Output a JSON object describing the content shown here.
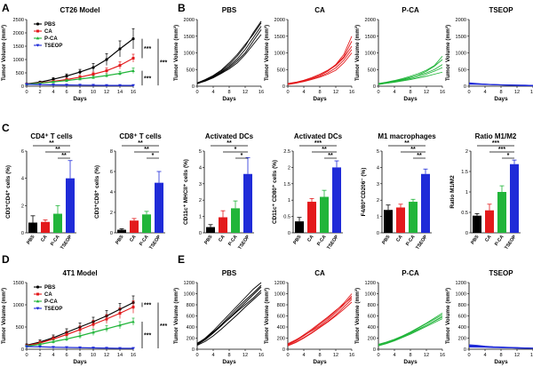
{
  "colors": {
    "PBS": "#000000",
    "CA": "#e31a1c",
    "P-CA": "#21b53a",
    "TSEOP": "#1f2bd8"
  },
  "panel_labels": {
    "A": "A",
    "B": "B",
    "C": "C",
    "D": "D",
    "E": "E"
  },
  "chart_data": [
    {
      "id": "A",
      "type": "line",
      "title": "CT26 Model",
      "xlabel": "Days",
      "ylabel": "Tumor Volume (mm³)",
      "xlim": [
        0,
        16
      ],
      "ylim": [
        0,
        2500
      ],
      "xticks": [
        0,
        2,
        4,
        6,
        8,
        10,
        12,
        14,
        16
      ],
      "yticks": [
        0,
        500,
        1000,
        1500,
        2000,
        2500
      ],
      "x": [
        0,
        2,
        4,
        6,
        8,
        10,
        12,
        14,
        16
      ],
      "series": [
        {
          "name": "PBS",
          "values": [
            90,
            150,
            260,
            380,
            530,
            700,
            1000,
            1400,
            1780
          ],
          "err": [
            20,
            40,
            60,
            80,
            100,
            150,
            220,
            300,
            380
          ]
        },
        {
          "name": "CA",
          "values": [
            80,
            120,
            180,
            250,
            340,
            450,
            580,
            780,
            1050
          ],
          "err": [
            15,
            30,
            40,
            50,
            60,
            80,
            100,
            130,
            150
          ]
        },
        {
          "name": "P-CA",
          "values": [
            80,
            110,
            160,
            210,
            270,
            330,
            400,
            480,
            580
          ],
          "err": [
            15,
            25,
            30,
            40,
            50,
            60,
            70,
            80,
            100
          ]
        },
        {
          "name": "TSEOP",
          "values": [
            70,
            60,
            50,
            45,
            40,
            35,
            30,
            30,
            30
          ],
          "err": [
            10,
            10,
            10,
            8,
            8,
            8,
            8,
            8,
            8
          ]
        }
      ],
      "sig": [
        "***",
        "***",
        "***"
      ]
    },
    {
      "id": "B",
      "type": "line",
      "xlabel": "Days",
      "ylabel": "Tumor Volume (mm³)",
      "xlim": [
        0,
        16
      ],
      "ylim": [
        0,
        2000
      ],
      "xticks": [
        0,
        4,
        8,
        12,
        16
      ],
      "yticks": [
        0,
        500,
        1000,
        1500,
        2000
      ],
      "panels": [
        {
          "title": "PBS",
          "group": "PBS",
          "x": [
            0,
            2,
            4,
            6,
            8,
            10,
            12,
            14,
            16
          ],
          "lines": [
            [
              80,
              180,
              300,
              450,
              650,
              900,
              1200,
              1600,
              1950
            ],
            [
              90,
              170,
              280,
              420,
              600,
              820,
              1100,
              1450,
              1800
            ],
            [
              70,
              160,
              260,
              400,
              560,
              760,
              1000,
              1350,
              1700
            ],
            [
              100,
              200,
              320,
              480,
              700,
              950,
              1250,
              1550,
              1900
            ],
            [
              80,
              150,
              250,
              380,
              520,
              700,
              950,
              1250,
              1550
            ]
          ]
        },
        {
          "title": "CA",
          "group": "CA",
          "x": [
            0,
            2,
            4,
            6,
            8,
            10,
            12,
            14,
            16
          ],
          "lines": [
            [
              60,
              100,
              160,
              230,
              320,
              450,
              650,
              950,
              1500
            ],
            [
              70,
              110,
              170,
              240,
              330,
              460,
              620,
              850,
              1200
            ],
            [
              50,
              90,
              150,
              210,
              290,
              400,
              550,
              780,
              1100
            ],
            [
              80,
              120,
              180,
              260,
              360,
              480,
              640,
              880,
              1350
            ],
            [
              60,
              95,
              140,
              200,
              270,
              360,
              480,
              700,
              1000
            ]
          ]
        },
        {
          "title": "P-CA",
          "group": "P-CA",
          "x": [
            0,
            2,
            4,
            6,
            8,
            10,
            12,
            14,
            16
          ],
          "lines": [
            [
              60,
              100,
              150,
              200,
              260,
              340,
              450,
              600,
              800
            ],
            [
              70,
              110,
              160,
              210,
              270,
              330,
              400,
              500,
              650
            ],
            [
              50,
              90,
              130,
              180,
              230,
              290,
              360,
              450,
              560
            ],
            [
              80,
              120,
              170,
              230,
              300,
              380,
              480,
              620,
              900
            ],
            [
              60,
              90,
              120,
              160,
              200,
              250,
              300,
              360,
              420
            ]
          ]
        },
        {
          "title": "TSEOP",
          "group": "TSEOP",
          "x": [
            0,
            2,
            4,
            6,
            8,
            10,
            12,
            14,
            16
          ],
          "lines": [
            [
              90,
              70,
              60,
              50,
              40,
              30,
              20,
              15,
              10
            ],
            [
              80,
              75,
              60,
              50,
              45,
              40,
              35,
              30,
              25
            ],
            [
              70,
              65,
              55,
              45,
              40,
              35,
              30,
              25,
              20
            ],
            [
              100,
              80,
              60,
              45,
              35,
              30,
              25,
              20,
              15
            ],
            [
              60,
              55,
              50,
              45,
              40,
              35,
              30,
              30,
              25
            ]
          ]
        }
      ]
    },
    {
      "id": "C",
      "type": "bar",
      "categories": [
        "PBS",
        "CA",
        "P-CA",
        "TSEOP"
      ],
      "panels": [
        {
          "title": "CD4⁺ T cells",
          "ylabel": "CD3⁺CD4⁺ cells (%)",
          "ylim": [
            0,
            6
          ],
          "yticks": [
            0,
            2,
            4,
            6
          ],
          "values": [
            0.75,
            0.8,
            1.4,
            4.0
          ],
          "err": [
            0.5,
            0.15,
            0.6,
            1.3
          ],
          "sig": [
            "**",
            "**",
            "**"
          ]
        },
        {
          "title": "CD8⁺ T cells",
          "ylabel": "CD3⁺CD8⁺ cells (%)",
          "ylim": [
            0,
            8
          ],
          "yticks": [
            0,
            2,
            4,
            6,
            8
          ],
          "values": [
            0.3,
            1.2,
            1.8,
            4.9
          ],
          "err": [
            0.1,
            0.2,
            0.3,
            1.1
          ],
          "sig": [
            "**",
            "**",
            "*"
          ]
        },
        {
          "title": "Activated DCs",
          "ylabel": "CD11c⁺ MHCII⁺ cells (%)",
          "ylim": [
            0,
            5
          ],
          "yticks": [
            0,
            1,
            2,
            3,
            4,
            5
          ],
          "values": [
            0.35,
            0.95,
            1.5,
            3.6
          ],
          "err": [
            0.15,
            0.4,
            0.45,
            1.0
          ],
          "sig": [
            "**",
            "*",
            "*"
          ]
        },
        {
          "title": "Activated DCs",
          "ylabel": "CD11c⁺ CD80⁺ cells (%)",
          "ylim": [
            0,
            2.5
          ],
          "yticks": [
            0,
            0.5,
            1.0,
            1.5,
            2.0,
            2.5
          ],
          "values": [
            0.35,
            0.95,
            1.1,
            2.0
          ],
          "err": [
            0.12,
            0.1,
            0.2,
            0.2
          ],
          "sig": [
            "***",
            "**",
            "**"
          ]
        },
        {
          "title": "M1 macrophages",
          "ylabel": "F4/80⁺CD206⁻ (%)",
          "ylim": [
            0,
            5
          ],
          "yticks": [
            0,
            1,
            2,
            3,
            4,
            5
          ],
          "values": [
            1.4,
            1.55,
            1.9,
            3.6
          ],
          "err": [
            0.3,
            0.2,
            0.15,
            0.3
          ],
          "sig": [
            "**",
            "**",
            "**"
          ]
        },
        {
          "title": "Ratio M1/M2",
          "ylabel": "Ratio M1/M2",
          "ylim": [
            0,
            2.0
          ],
          "yticks": [
            0,
            0.5,
            1.0,
            1.5,
            2.0
          ],
          "values": [
            0.42,
            0.55,
            1.0,
            1.68
          ],
          "err": [
            0.05,
            0.15,
            0.15,
            0.1
          ],
          "sig": [
            "***",
            "***",
            "*"
          ]
        }
      ]
    },
    {
      "id": "D",
      "type": "line",
      "title": "4T1 Model",
      "xlabel": "Days",
      "ylabel": "Tumor Volume (mm³)",
      "xlim": [
        0,
        16
      ],
      "ylim": [
        0,
        1500
      ],
      "xticks": [
        0,
        2,
        4,
        6,
        8,
        10,
        12,
        14,
        16
      ],
      "yticks": [
        0,
        500,
        1000,
        1500
      ],
      "x": [
        0,
        2,
        4,
        6,
        8,
        10,
        12,
        14,
        16
      ],
      "series": [
        {
          "name": "PBS",
          "values": [
            90,
            160,
            260,
            380,
            500,
            620,
            750,
            900,
            1050
          ],
          "err": [
            30,
            50,
            60,
            80,
            90,
            100,
            120,
            130,
            150
          ]
        },
        {
          "name": "CA",
          "values": [
            80,
            140,
            230,
            330,
            440,
            560,
            680,
            810,
            950
          ],
          "err": [
            20,
            40,
            50,
            70,
            80,
            90,
            100,
            120,
            140
          ]
        },
        {
          "name": "P-CA",
          "values": [
            70,
            110,
            170,
            230,
            300,
            380,
            460,
            540,
            620
          ],
          "err": [
            20,
            30,
            40,
            50,
            60,
            70,
            70,
            80,
            80
          ]
        },
        {
          "name": "TSEOP",
          "values": [
            60,
            55,
            45,
            40,
            35,
            30,
            25,
            20,
            20
          ],
          "err": [
            10,
            10,
            8,
            8,
            8,
            8,
            6,
            6,
            6
          ]
        }
      ],
      "sig": [
        "***",
        "***",
        "***"
      ]
    },
    {
      "id": "E",
      "type": "line",
      "xlabel": "Days",
      "ylabel": "Tumor Volume (mm³)",
      "xlim": [
        0,
        16
      ],
      "ylim": [
        0,
        1200
      ],
      "xticks": [
        0,
        4,
        8,
        12,
        16
      ],
      "yticks": [
        0,
        200,
        400,
        600,
        800,
        1000,
        1200
      ],
      "panels": [
        {
          "title": "PBS",
          "group": "PBS",
          "x": [
            0,
            2,
            4,
            6,
            8,
            10,
            12,
            14,
            16
          ],
          "lines": [
            [
              100,
              200,
              330,
              480,
              630,
              780,
              930,
              1080,
              1200
            ],
            [
              80,
              170,
              290,
              420,
              560,
              700,
              840,
              980,
              1120
            ],
            [
              90,
              180,
              300,
              440,
              590,
              740,
              880,
              1010,
              1150
            ],
            [
              70,
              140,
              240,
              360,
              490,
              620,
              760,
              890,
              1020
            ],
            [
              110,
              190,
              310,
              430,
              550,
              680,
              800,
              920,
              1060
            ]
          ]
        },
        {
          "title": "CA",
          "group": "CA",
          "x": [
            0,
            2,
            4,
            6,
            8,
            10,
            12,
            14,
            16
          ],
          "lines": [
            [
              80,
              150,
              240,
              340,
              450,
              560,
              690,
              830,
              1000
            ],
            [
              90,
              160,
              260,
              360,
              470,
              580,
              700,
              810,
              930
            ],
            [
              70,
              130,
              210,
              300,
              400,
              500,
              620,
              760,
              900
            ],
            [
              100,
              170,
              250,
              330,
              420,
              530,
              660,
              800,
              960
            ],
            [
              60,
              120,
              200,
              290,
              390,
              490,
              600,
              720,
              850
            ]
          ]
        },
        {
          "title": "P-CA",
          "group": "P-CA",
          "x": [
            0,
            2,
            4,
            6,
            8,
            10,
            12,
            14,
            16
          ],
          "lines": [
            [
              80,
              120,
              170,
              230,
              300,
              380,
              460,
              540,
              620
            ],
            [
              70,
              110,
              160,
              220,
              290,
              360,
              430,
              510,
              590
            ],
            [
              90,
              130,
              180,
              240,
              310,
              390,
              470,
              560,
              650
            ],
            [
              60,
              100,
              150,
              210,
              270,
              340,
              410,
              480,
              550
            ],
            [
              75,
              115,
              165,
              225,
              285,
              355,
              430,
              505,
              580
            ]
          ]
        },
        {
          "title": "TSEOP",
          "group": "TSEOP",
          "x": [
            0,
            2,
            4,
            6,
            8,
            10,
            12,
            14,
            16
          ],
          "lines": [
            [
              60,
              50,
              45,
              40,
              35,
              30,
              25,
              20,
              15
            ],
            [
              80,
              70,
              55,
              45,
              40,
              35,
              30,
              25,
              20
            ],
            [
              50,
              45,
              40,
              35,
              30,
              25,
              20,
              18,
              15
            ],
            [
              70,
              60,
              50,
              42,
              36,
              30,
              26,
              22,
              18
            ],
            [
              40,
              38,
              35,
              30,
              28,
              25,
              22,
              20,
              18
            ]
          ]
        }
      ]
    }
  ]
}
